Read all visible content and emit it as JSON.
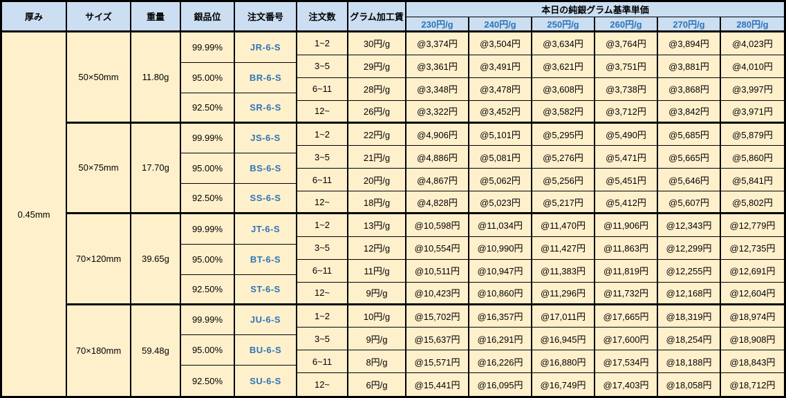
{
  "colors": {
    "header_bg": "#CBDEF2",
    "body_bg": "#FFF0CC",
    "accent_blue": "#2E75B6",
    "border": "#000000"
  },
  "header": {
    "thickness": "厚み",
    "size": "サイズ",
    "weight": "重量",
    "purity": "銀品位",
    "order_no": "注文番号",
    "order_qty": "注文数",
    "fee": "グラム加工賃",
    "price_group": "本日の純銀グラム基準単価",
    "price_cols": [
      "230円/g",
      "240円/g",
      "250円/g",
      "260円/g",
      "270円/g",
      "280円/g"
    ]
  },
  "thickness": "0.45mm",
  "blocks": [
    {
      "size": "50×50mm",
      "weight": "11.80g",
      "purities": [
        {
          "purity": "99.99%",
          "code": "JR-6-S"
        },
        {
          "purity": "95.00%",
          "code": "BR-6-S"
        },
        {
          "purity": "92.50%",
          "code": "SR-6-S"
        }
      ],
      "rows": [
        {
          "qty": "1~2",
          "fee": "30円/g",
          "prices": [
            "@3,374円",
            "@3,504円",
            "@3,634円",
            "@3,764円",
            "@3,894円",
            "@4,023円"
          ]
        },
        {
          "qty": "3~5",
          "fee": "29円/g",
          "prices": [
            "@3,361円",
            "@3,491円",
            "@3,621円",
            "@3,751円",
            "@3,881円",
            "@4,010円"
          ]
        },
        {
          "qty": "6~11",
          "fee": "28円/g",
          "prices": [
            "@3,348円",
            "@3,478円",
            "@3,608円",
            "@3,738円",
            "@3,868円",
            "@3,997円"
          ]
        },
        {
          "qty": "12~",
          "fee": "26円/g",
          "prices": [
            "@3,322円",
            "@3,452円",
            "@3,582円",
            "@3,712円",
            "@3,842円",
            "@3,971円"
          ]
        }
      ]
    },
    {
      "size": "50×75mm",
      "weight": "17.70g",
      "purities": [
        {
          "purity": "99.99%",
          "code": "JS-6-S"
        },
        {
          "purity": "95.00%",
          "code": "BS-6-S"
        },
        {
          "purity": "92.50%",
          "code": "SS-6-S"
        }
      ],
      "rows": [
        {
          "qty": "1~2",
          "fee": "22円/g",
          "prices": [
            "@4,906円",
            "@5,101円",
            "@5,295円",
            "@5,490円",
            "@5,685円",
            "@5,879円"
          ]
        },
        {
          "qty": "3~5",
          "fee": "21円/g",
          "prices": [
            "@4,886円",
            "@5,081円",
            "@5,276円",
            "@5,471円",
            "@5,665円",
            "@5,860円"
          ]
        },
        {
          "qty": "6~11",
          "fee": "20円/g",
          "prices": [
            "@4,867円",
            "@5,062円",
            "@5,256円",
            "@5,451円",
            "@5,646円",
            "@5,841円"
          ]
        },
        {
          "qty": "12~",
          "fee": "18円/g",
          "prices": [
            "@4,828円",
            "@5,023円",
            "@5,217円",
            "@5,412円",
            "@5,607円",
            "@5,802円"
          ]
        }
      ]
    },
    {
      "size": "70×120mm",
      "weight": "39.65g",
      "purities": [
        {
          "purity": "99.99%",
          "code": "JT-6-S"
        },
        {
          "purity": "95.00%",
          "code": "BT-6-S"
        },
        {
          "purity": "92.50%",
          "code": "ST-6-S"
        }
      ],
      "rows": [
        {
          "qty": "1~2",
          "fee": "13円/g",
          "prices": [
            "@10,598円",
            "@11,034円",
            "@11,470円",
            "@11,906円",
            "@12,343円",
            "@12,779円"
          ]
        },
        {
          "qty": "3~5",
          "fee": "12円/g",
          "prices": [
            "@10,554円",
            "@10,990円",
            "@11,427円",
            "@11,863円",
            "@12,299円",
            "@12,735円"
          ]
        },
        {
          "qty": "6~11",
          "fee": "11円/g",
          "prices": [
            "@10,511円",
            "@10,947円",
            "@11,383円",
            "@11,819円",
            "@12,255円",
            "@12,691円"
          ]
        },
        {
          "qty": "12~",
          "fee": "9円/g",
          "prices": [
            "@10,423円",
            "@10,860円",
            "@11,296円",
            "@11,732円",
            "@12,168円",
            "@12,604円"
          ]
        }
      ]
    },
    {
      "size": "70×180mm",
      "weight": "59.48g",
      "purities": [
        {
          "purity": "99.99%",
          "code": "JU-6-S"
        },
        {
          "purity": "95.00%",
          "code": "BU-6-S"
        },
        {
          "purity": "92.50%",
          "code": "SU-6-S"
        }
      ],
      "rows": [
        {
          "qty": "1~2",
          "fee": "10円/g",
          "prices": [
            "@15,702円",
            "@16,357円",
            "@17,011円",
            "@17,665円",
            "@18,319円",
            "@18,974円"
          ]
        },
        {
          "qty": "3~5",
          "fee": "9円/g",
          "prices": [
            "@15,637円",
            "@16,291円",
            "@16,945円",
            "@17,600円",
            "@18,254円",
            "@18,908円"
          ]
        },
        {
          "qty": "6~11",
          "fee": "8円/g",
          "prices": [
            "@15,571円",
            "@16,226円",
            "@16,880円",
            "@17,534円",
            "@18,188円",
            "@18,843円"
          ]
        },
        {
          "qty": "12~",
          "fee": "6円/g",
          "prices": [
            "@15,441円",
            "@16,095円",
            "@16,749円",
            "@17,403円",
            "@18,058円",
            "@18,712円"
          ]
        }
      ]
    }
  ]
}
